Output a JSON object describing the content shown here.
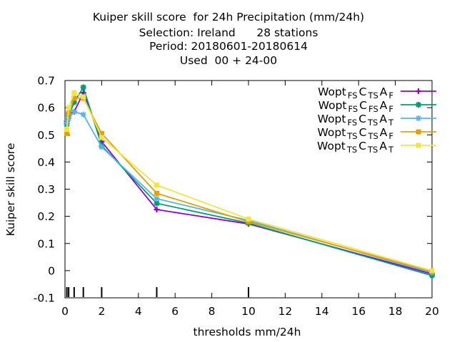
{
  "chart_data": {
    "type": "line",
    "title_lines": [
      "Kuiper skill score  for 24h Precipitation (mm/24h)",
      "Selection: Ireland      28 stations",
      "Period: 20180601-20180614",
      "Used  00 + 24-00"
    ],
    "xlabel": "thresholds mm/24h",
    "ylabel": "Kuiper skill score",
    "xlim": [
      0,
      20
    ],
    "ylim": [
      -0.1,
      0.7
    ],
    "xticks": [
      0,
      2,
      4,
      6,
      8,
      10,
      12,
      14,
      16,
      18,
      20
    ],
    "yticks": [
      -0.1,
      0,
      0.1,
      0.2,
      0.3,
      0.4,
      0.5,
      0.6,
      0.7
    ],
    "ytick_labels": [
      "-0.1",
      "0",
      "0.1",
      "0.2",
      "0.3",
      "0.4",
      "0.5",
      "0.6",
      "0.7"
    ],
    "threshold_marks": [
      0.1,
      0.2,
      0.5,
      1,
      2,
      5,
      10
    ],
    "grid": false,
    "legend_position": "top-right",
    "x": [
      0.1,
      0.2,
      0.5,
      1,
      2,
      5,
      10,
      20
    ],
    "series": [
      {
        "name": "Wopt FS C TS A F",
        "legend": [
          "Wopt",
          "FS",
          "C",
          "TS",
          "A",
          "F"
        ],
        "color": "#9400d3",
        "marker": "plus",
        "values": [
          0.55,
          0.58,
          0.585,
          0.655,
          0.475,
          0.225,
          0.172,
          -0.012
        ]
      },
      {
        "name": "Wopt FS C FS A F",
        "legend": [
          "Wopt",
          "FS",
          "C",
          "FS",
          "A",
          "F"
        ],
        "color": "#009e73",
        "marker": "cross",
        "values": [
          0.54,
          0.57,
          0.62,
          0.675,
          0.46,
          0.248,
          0.175,
          -0.018
        ]
      },
      {
        "name": "Wopt FS C TS A T",
        "legend": [
          "Wopt",
          "FS",
          "C",
          "TS",
          "A",
          "T"
        ],
        "color": "#56b4e9",
        "marker": "star",
        "values": [
          0.545,
          0.56,
          0.585,
          0.575,
          0.455,
          0.265,
          0.185,
          -0.008
        ]
      },
      {
        "name": "Wopt TS C TS A F",
        "legend": [
          "Wopt",
          "TS",
          "C",
          "TS",
          "A",
          "F"
        ],
        "color": "#e69f00",
        "marker": "square",
        "values": [
          0.505,
          0.58,
          0.635,
          0.635,
          0.505,
          0.285,
          0.18,
          -0.003
        ]
      },
      {
        "name": "Wopt TS C TS A T",
        "legend": [
          "Wopt",
          "TS",
          "C",
          "TS",
          "A",
          "T"
        ],
        "color": "#f0e442",
        "marker": "square",
        "values": [
          0.52,
          0.6,
          0.655,
          0.64,
          0.49,
          0.315,
          0.19,
          0.0
        ]
      }
    ]
  }
}
